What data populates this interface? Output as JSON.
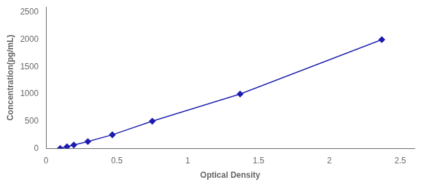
{
  "chart_data": {
    "type": "line",
    "x": [
      0.1,
      0.148,
      0.196,
      0.295,
      0.468,
      0.75,
      1.37,
      2.37
    ],
    "values": [
      0,
      31.25,
      62.5,
      125,
      250,
      500,
      1000,
      2000
    ],
    "color": "#1C1CB0",
    "marker": "diamond",
    "xlabel": "Optical Density",
    "ylabel": "Concentration(pg/mL)",
    "xlim": [
      0,
      2.6
    ],
    "ylim": [
      0,
      2600
    ],
    "xticks": [
      0,
      0.5,
      1,
      1.5,
      2,
      2.5
    ],
    "yticks": [
      0,
      500,
      1000,
      1500,
      2000,
      2500
    ],
    "grid": false
  }
}
